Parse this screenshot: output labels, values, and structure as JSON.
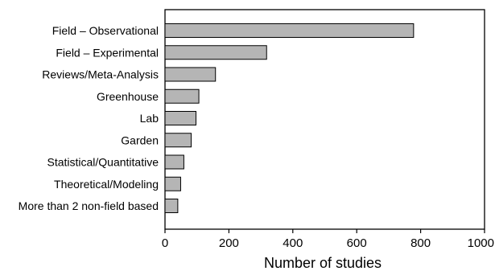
{
  "chart_data": {
    "type": "bar",
    "orientation": "horizontal",
    "categories": [
      "Field – Observational",
      "Field – Experimental",
      "Reviews/Meta-Analysis",
      "Greenhouse",
      "Lab",
      "Garden",
      "Statistical/Quantitative",
      "Theoretical/Modeling",
      "More than 2 non-field based"
    ],
    "values": [
      778,
      318,
      158,
      106,
      97,
      82,
      59,
      49,
      40
    ],
    "xlabel": "Number of studies",
    "ylabel": "",
    "xlim": [
      0,
      1000
    ],
    "xticks": [
      0,
      200,
      400,
      600,
      800,
      1000
    ],
    "grid": false,
    "bar_color": "#b5b5b5",
    "edge_color": "#000000"
  }
}
